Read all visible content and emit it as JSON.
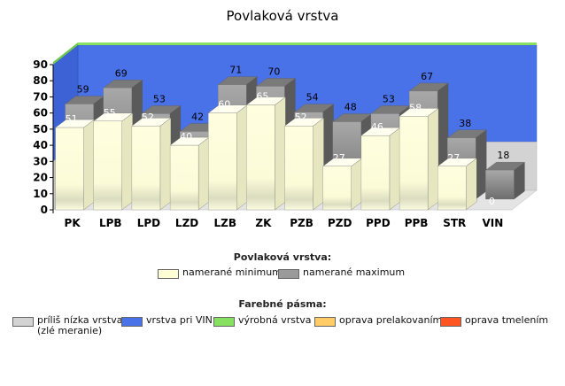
{
  "title": "Povlaková vrstva",
  "chart_data": {
    "type": "bar",
    "title": "Povlaková vrstva",
    "categories": [
      "PK",
      "LPB",
      "LPD",
      "LZD",
      "LZB",
      "ZK",
      "PZB",
      "PZD",
      "PPD",
      "PPB",
      "STR",
      "VIN"
    ],
    "series": [
      {
        "name": "namerané minimum",
        "values": [
          51,
          55,
          52,
          40,
          60,
          65,
          52,
          27,
          46,
          58,
          27,
          0
        ],
        "color": "#ffffd6"
      },
      {
        "name": "namerané maximum",
        "values": [
          59,
          69,
          53,
          42,
          71,
          70,
          54,
          48,
          53,
          67,
          38,
          18
        ],
        "color": "#9a9a9a"
      }
    ],
    "ylim": [
      0,
      90
    ],
    "yticks": [
      0,
      10,
      20,
      30,
      40,
      50,
      60,
      70,
      80,
      90
    ],
    "grid": false,
    "background_bands": [
      {
        "name": "príliš nízka vrstva (zlé meranie)",
        "from": 0,
        "to": 30,
        "color": "#d3d3d3"
      },
      {
        "name": "vrstva pri VIN",
        "from": 30,
        "to": 90,
        "color": "#4a72e8"
      },
      {
        "name": "výrobná vrstva",
        "color": "#88e060"
      }
    ]
  },
  "legend1": {
    "title": "Povlaková vrstva:",
    "items": [
      {
        "label": "namerané minimum",
        "color": "#ffffd6"
      },
      {
        "label": "namerané maximum",
        "color": "#9a9a9a"
      }
    ]
  },
  "legend2": {
    "title": "Farebné pásma:",
    "items": [
      {
        "label": "príliš nízka vrstva\n(zlé meranie)",
        "color": "#d3d3d3"
      },
      {
        "label": "vrstva pri VIN",
        "color": "#4a72e8"
      },
      {
        "label": "výrobná vrstva",
        "color": "#88e060"
      },
      {
        "label": "oprava prelakovaním",
        "color": "#ffcc66"
      },
      {
        "label": "oprava tmelením",
        "color": "#ff5522"
      }
    ]
  }
}
